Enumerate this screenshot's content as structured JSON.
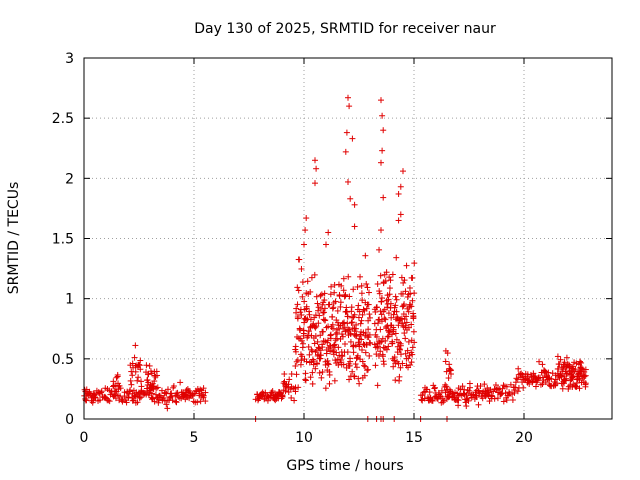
{
  "chart_data": {
    "type": "scatter",
    "title": "Day 130 of 2025, SRMTID for receiver naur",
    "xlabel": "GPS time / hours",
    "ylabel": "SRMTID / TECUs",
    "xlim": [
      0,
      24
    ],
    "ylim": [
      0,
      3
    ],
    "x_ticks": [
      0,
      5,
      10,
      15,
      20
    ],
    "x_tick_labels": [
      "0",
      "5",
      "10",
      "15",
      "20"
    ],
    "y_ticks": [
      0,
      0.5,
      1,
      1.5,
      2,
      2.5,
      3
    ],
    "y_tick_labels": [
      "0",
      "0.5",
      "1",
      "1.5",
      "2",
      "2.5",
      "3"
    ],
    "grid": true,
    "marker": "+",
    "color": "#e00000",
    "segments": [
      {
        "x_start": 0.0,
        "x_end": 5.5,
        "base": 0.2,
        "spread": 0.07
      },
      {
        "x_start": 7.8,
        "x_end": 9.0,
        "base": 0.19,
        "spread": 0.05
      },
      {
        "x_start": 9.0,
        "x_end": 9.6,
        "base": 0.28,
        "spread": 0.1
      },
      {
        "x_start": 15.3,
        "x_end": 19.6,
        "base": 0.2,
        "spread": 0.08
      },
      {
        "x_start": 19.6,
        "x_end": 22.8,
        "base": 0.33,
        "spread": 0.1
      }
    ],
    "bumps": [
      {
        "x_start": 2.1,
        "x_end": 2.6,
        "base": 0.45,
        "spread": 0.15
      },
      {
        "x_start": 2.8,
        "x_end": 3.3,
        "base": 0.33,
        "spread": 0.12
      },
      {
        "x_start": 1.3,
        "x_end": 1.6,
        "base": 0.3,
        "spread": 0.08
      },
      {
        "x_start": 16.4,
        "x_end": 16.7,
        "base": 0.4,
        "spread": 0.15
      },
      {
        "x_start": 21.5,
        "x_end": 22.8,
        "base": 0.42,
        "spread": 0.08
      }
    ],
    "storm_regions": [
      {
        "x_start": 9.6,
        "x_end": 13.0,
        "base": 0.7,
        "spread": 0.45
      },
      {
        "x_start": 13.2,
        "x_end": 15.0,
        "base": 0.8,
        "spread": 0.45
      }
    ],
    "peak_points": [
      {
        "x": 10.0,
        "y": 1.45
      },
      {
        "x": 10.05,
        "y": 1.57
      },
      {
        "x": 10.1,
        "y": 1.67
      },
      {
        "x": 10.5,
        "y": 2.15
      },
      {
        "x": 10.5,
        "y": 1.96
      },
      {
        "x": 10.55,
        "y": 2.08
      },
      {
        "x": 11.0,
        "y": 1.45
      },
      {
        "x": 11.1,
        "y": 1.55
      },
      {
        "x": 11.9,
        "y": 2.22
      },
      {
        "x": 11.95,
        "y": 2.38
      },
      {
        "x": 12.0,
        "y": 2.67
      },
      {
        "x": 12.05,
        "y": 2.6
      },
      {
        "x": 12.0,
        "y": 1.97
      },
      {
        "x": 12.1,
        "y": 1.83
      },
      {
        "x": 12.3,
        "y": 1.78
      },
      {
        "x": 12.2,
        "y": 2.33
      },
      {
        "x": 12.3,
        "y": 1.6
      },
      {
        "x": 13.5,
        "y": 2.65
      },
      {
        "x": 13.55,
        "y": 2.52
      },
      {
        "x": 13.6,
        "y": 2.4
      },
      {
        "x": 13.55,
        "y": 2.23
      },
      {
        "x": 13.5,
        "y": 2.13
      },
      {
        "x": 13.6,
        "y": 1.84
      },
      {
        "x": 13.5,
        "y": 1.57
      },
      {
        "x": 14.3,
        "y": 1.87
      },
      {
        "x": 14.4,
        "y": 1.93
      },
      {
        "x": 14.5,
        "y": 2.06
      },
      {
        "x": 14.4,
        "y": 1.7
      },
      {
        "x": 14.3,
        "y": 1.65
      }
    ],
    "zero_points": [
      7.8,
      12.9,
      13.3,
      13.5,
      13.6,
      14.1,
      15.3,
      16.5
    ]
  }
}
